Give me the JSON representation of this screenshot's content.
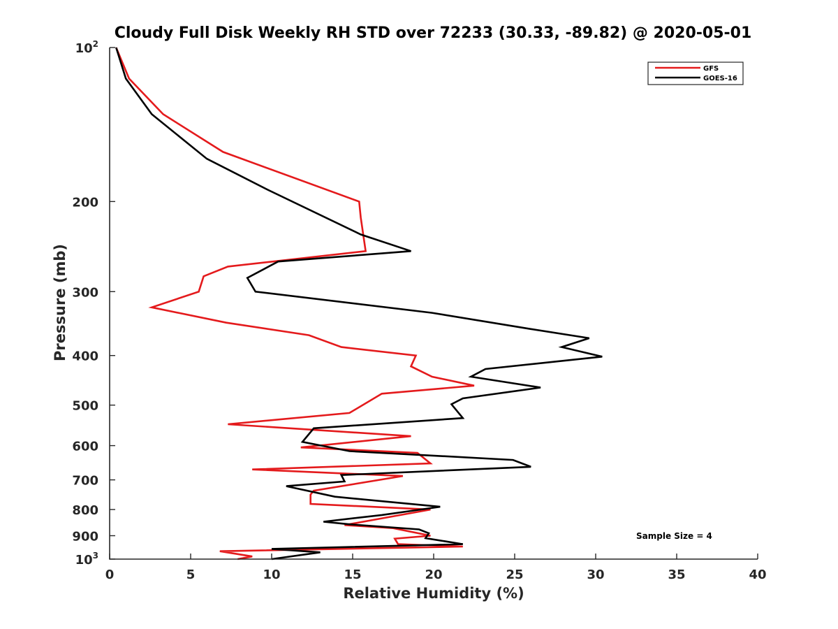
{
  "chart_data": {
    "type": "line",
    "title": "Cloudy Full Disk Weekly RH STD over 72233 (30.33, -89.82) @ 2020-05-01",
    "xlabel": "Relative Humidity (%)",
    "ylabel": "Pressure (mb)",
    "xlim": [
      0,
      40
    ],
    "ylim": [
      100,
      1000
    ],
    "y_scale": "log",
    "y_reversed": true,
    "grid": false,
    "legend_position": "top-right",
    "x_ticks": [
      "0",
      "5",
      "10",
      "15",
      "20",
      "25",
      "30",
      "35",
      "40"
    ],
    "y_ticks": [
      {
        "value": 100,
        "label": "10",
        "sup": "2"
      },
      {
        "value": 200,
        "label": "200"
      },
      {
        "value": 300,
        "label": "300"
      },
      {
        "value": 400,
        "label": "400"
      },
      {
        "value": 500,
        "label": "500"
      },
      {
        "value": 600,
        "label": "600"
      },
      {
        "value": 700,
        "label": "700"
      },
      {
        "value": 800,
        "label": "800"
      },
      {
        "value": 900,
        "label": "900"
      },
      {
        "value": 1000,
        "label": "10",
        "sup": "3"
      }
    ],
    "annotation": "Sample Size = 4",
    "series": [
      {
        "name": "GFS",
        "color": "#e41a1c",
        "points": [
          [
            0.4,
            100
          ],
          [
            1.2,
            115
          ],
          [
            3.3,
            135
          ],
          [
            7.0,
            160
          ],
          [
            15.4,
            200
          ],
          [
            15.5,
            215
          ],
          [
            15.8,
            250
          ],
          [
            7.3,
            268
          ],
          [
            5.8,
            280
          ],
          [
            5.5,
            300
          ],
          [
            2.6,
            322
          ],
          [
            7.2,
            345
          ],
          [
            12.3,
            365
          ],
          [
            14.3,
            385
          ],
          [
            18.9,
            400
          ],
          [
            18.6,
            420
          ],
          [
            19.9,
            440
          ],
          [
            22.5,
            458
          ],
          [
            16.8,
            475
          ],
          [
            14.8,
            518
          ],
          [
            7.3,
            545
          ],
          [
            18.6,
            575
          ],
          [
            11.8,
            605
          ],
          [
            19.0,
            620
          ],
          [
            19.8,
            650
          ],
          [
            8.8,
            668
          ],
          [
            18.1,
            688
          ],
          [
            12.6,
            735
          ],
          [
            12.4,
            748
          ],
          [
            12.4,
            780
          ],
          [
            19.8,
            800
          ],
          [
            14.5,
            858
          ],
          [
            17.5,
            870
          ],
          [
            19.8,
            900
          ],
          [
            17.6,
            912
          ],
          [
            17.8,
            935
          ],
          [
            21.8,
            945
          ],
          [
            6.8,
            965
          ],
          [
            8.8,
            988
          ],
          [
            7.9,
            1000
          ]
        ]
      },
      {
        "name": "GOES-16",
        "color": "#000000",
        "points": [
          [
            0.4,
            100
          ],
          [
            1.0,
            115
          ],
          [
            2.6,
            135
          ],
          [
            6.0,
            165
          ],
          [
            9.8,
            190
          ],
          [
            15.5,
            232
          ],
          [
            18.6,
            250
          ],
          [
            10.4,
            262
          ],
          [
            8.5,
            282
          ],
          [
            9.0,
            300
          ],
          [
            19.9,
            330
          ],
          [
            26.0,
            355
          ],
          [
            29.6,
            370
          ],
          [
            27.9,
            385
          ],
          [
            30.4,
            402
          ],
          [
            23.2,
            425
          ],
          [
            22.3,
            440
          ],
          [
            26.6,
            462
          ],
          [
            21.8,
            485
          ],
          [
            21.1,
            498
          ],
          [
            21.8,
            530
          ],
          [
            12.6,
            555
          ],
          [
            11.9,
            590
          ],
          [
            14.8,
            615
          ],
          [
            24.9,
            640
          ],
          [
            26.0,
            660
          ],
          [
            14.3,
            685
          ],
          [
            14.5,
            705
          ],
          [
            10.9,
            720
          ],
          [
            13.9,
            755
          ],
          [
            20.4,
            790
          ],
          [
            16.8,
            820
          ],
          [
            13.2,
            845
          ],
          [
            14.8,
            855
          ],
          [
            19.1,
            875
          ],
          [
            19.7,
            890
          ],
          [
            19.5,
            910
          ],
          [
            21.8,
            935
          ],
          [
            10.0,
            955
          ],
          [
            13.0,
            970
          ],
          [
            10.0,
            1000
          ]
        ]
      }
    ]
  }
}
